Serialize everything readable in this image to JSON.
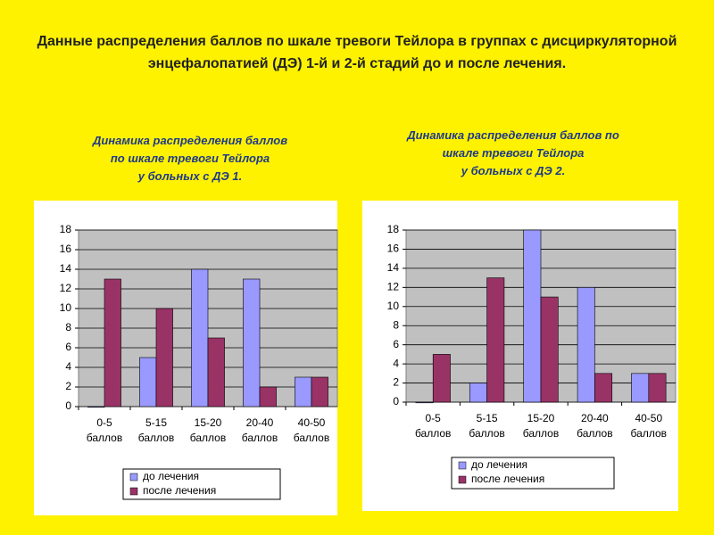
{
  "slide_title": "Данные распределения баллов по шкале тревоги Тейлора в группах с дисциркуляторной энцефалопатией (ДЭ) 1-й и 2-й стадий до и после лечения.",
  "chart_data": [
    {
      "type": "bar",
      "title": "Динамика распределения баллов\nпо шкале тревоги Тейлора\nу больных с ДЭ 1.",
      "categories": [
        "0-5\nбаллов",
        "5-15\nбаллов",
        "15-20\nбаллов",
        "20-40\nбаллов",
        "40-50\nбаллов"
      ],
      "series": [
        {
          "name": "до лечения",
          "color": "#9999ff",
          "values": [
            0,
            5,
            14,
            13,
            3
          ]
        },
        {
          "name": "после лечения",
          "color": "#993366",
          "values": [
            13,
            10,
            7,
            2,
            3
          ]
        }
      ],
      "ylim": [
        0,
        18
      ],
      "yticks": [
        0,
        2,
        4,
        6,
        8,
        10,
        12,
        14,
        16,
        18
      ],
      "grid": true,
      "legend": "bottom"
    },
    {
      "type": "bar",
      "title": "Динамика распределения баллов по\nшкале тревоги Тейлора\nу больных с ДЭ 2.",
      "categories": [
        "0-5\nбаллов",
        "5-15\nбаллов",
        "15-20\nбаллов",
        "20-40\nбаллов",
        "40-50\nбаллов"
      ],
      "series": [
        {
          "name": "до лечения",
          "color": "#9999ff",
          "values": [
            0,
            2,
            18,
            12,
            3
          ]
        },
        {
          "name": "после лечения",
          "color": "#993366",
          "values": [
            5,
            13,
            11,
            3,
            3
          ]
        }
      ],
      "ylim": [
        0,
        18
      ],
      "yticks": [
        0,
        2,
        4,
        6,
        8,
        10,
        12,
        14,
        16,
        18
      ],
      "grid": true,
      "legend": "bottom"
    }
  ]
}
